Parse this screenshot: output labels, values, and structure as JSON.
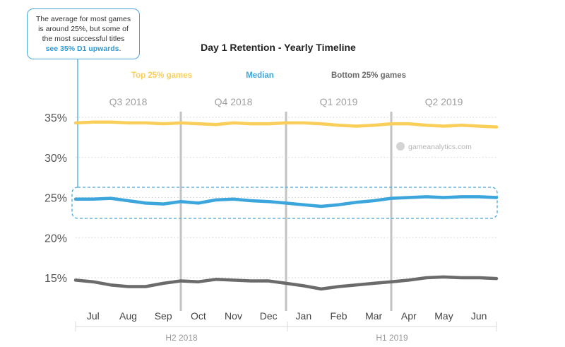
{
  "callout": {
    "line1": "The average for most games",
    "line2": "is around 25%, but some of",
    "line3": "the most successful titles",
    "highlight": "see 35% D1 upwards",
    "suffix": "."
  },
  "watermark": "gameanalytics.com",
  "colors": {
    "top": "#f9cf5a",
    "median": "#3ba5dc",
    "bottom": "#6b6b6b",
    "callout": "#4aa8d8"
  },
  "chart_data": {
    "type": "line",
    "title": "Day 1 Retention - Yearly Timeline",
    "xlabel": "",
    "ylabel": "",
    "ylim": [
      13,
      36.5
    ],
    "yticks": [
      15,
      20,
      25,
      30,
      35
    ],
    "ytick_labels": [
      "15%",
      "20%",
      "25%",
      "30%",
      "35%"
    ],
    "grid": true,
    "legend": "top",
    "x_range": [
      0,
      12
    ],
    "month_labels": [
      "Jul",
      "Aug",
      "Sep",
      "Oct",
      "Nov",
      "Dec",
      "Jan",
      "Feb",
      "Mar",
      "Apr",
      "May",
      "Jun"
    ],
    "quarters": [
      "Q3 2018",
      "Q4 2018",
      "Q1 2019",
      "Q2 2019"
    ],
    "halves": [
      "H2 2018",
      "H1 2019"
    ],
    "series": [
      {
        "name": "Top 25% games",
        "x": [
          0,
          0.5,
          1,
          1.5,
          2,
          2.5,
          3,
          3.5,
          4,
          4.5,
          5,
          5.5,
          6,
          6.5,
          7,
          7.5,
          8,
          8.5,
          9,
          9.5,
          10,
          10.5,
          11,
          11.5,
          12
        ],
        "values": [
          34.3,
          34.4,
          34.4,
          34.3,
          34.3,
          34.2,
          34.3,
          34.2,
          34.1,
          34.3,
          34.2,
          34.2,
          34.3,
          34.3,
          34.2,
          34.0,
          33.9,
          34.0,
          34.2,
          34.2,
          34.0,
          33.9,
          34.0,
          33.9,
          33.8
        ]
      },
      {
        "name": "Median",
        "x": [
          0,
          0.5,
          1,
          1.5,
          2,
          2.5,
          3,
          3.5,
          4,
          4.5,
          5,
          5.5,
          6,
          6.5,
          7,
          7.5,
          8,
          8.5,
          9,
          9.5,
          10,
          10.5,
          11,
          11.5,
          12
        ],
        "values": [
          24.8,
          24.8,
          24.9,
          24.6,
          24.3,
          24.2,
          24.5,
          24.3,
          24.7,
          24.8,
          24.6,
          24.5,
          24.3,
          24.1,
          23.9,
          24.1,
          24.4,
          24.6,
          24.9,
          25.0,
          25.1,
          25.0,
          25.1,
          25.1,
          25.0
        ]
      },
      {
        "name": "Bottom 25% games",
        "x": [
          0,
          0.5,
          1,
          1.5,
          2,
          2.5,
          3,
          3.5,
          4,
          4.5,
          5,
          5.5,
          6,
          6.5,
          7,
          7.5,
          8,
          8.5,
          9,
          9.5,
          10,
          10.5,
          11,
          11.5,
          12
        ],
        "values": [
          14.7,
          14.5,
          14.1,
          13.9,
          13.9,
          14.3,
          14.6,
          14.5,
          14.8,
          14.7,
          14.6,
          14.6,
          14.3,
          14.0,
          13.6,
          13.9,
          14.1,
          14.3,
          14.5,
          14.7,
          15.0,
          15.1,
          15.0,
          15.0,
          14.9
        ]
      }
    ]
  }
}
